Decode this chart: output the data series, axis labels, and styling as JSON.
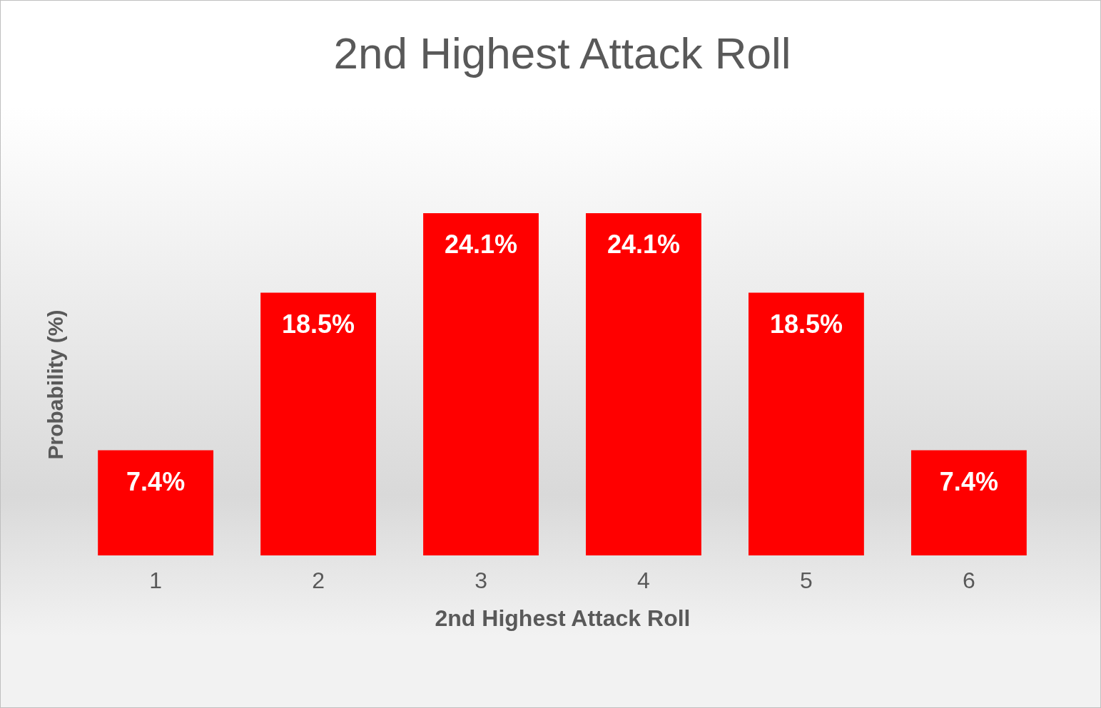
{
  "chart_data": {
    "type": "bar",
    "title": "2nd Highest Attack Roll",
    "xlabel": "2nd Highest Attack Roll",
    "ylabel": "Probability (%)",
    "categories": [
      "1",
      "2",
      "3",
      "4",
      "5",
      "6"
    ],
    "series": [
      {
        "color": "#ff0000",
        "values": [
          7.4,
          18.5,
          24.1,
          24.1,
          18.5,
          7.4
        ],
        "value_labels": [
          "7.4%",
          "18.5%",
          "24.1%",
          "24.1%",
          "18.5%",
          "7.4%"
        ]
      }
    ],
    "grid": false
  }
}
